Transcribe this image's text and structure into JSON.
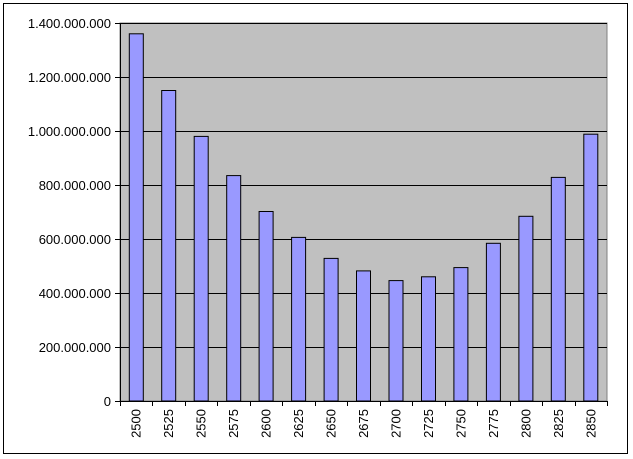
{
  "chart_data": {
    "type": "bar",
    "categories": [
      "2500",
      "2525",
      "2550",
      "2575",
      "2600",
      "2625",
      "2650",
      "2675",
      "2700",
      "2725",
      "2750",
      "2775",
      "2800",
      "2825",
      "2850"
    ],
    "values": [
      1360000000,
      1150000000,
      980000000,
      835000000,
      702000000,
      606000000,
      528000000,
      482000000,
      446000000,
      460000000,
      494000000,
      584000000,
      684000000,
      828000000,
      988000000
    ],
    "ylim": [
      0,
      1400000000
    ],
    "yticks": [
      0,
      200000000,
      400000000,
      600000000,
      800000000,
      1000000000,
      1200000000,
      1400000000
    ],
    "ytick_labels": [
      "0",
      "200.000.000",
      "400.000.000",
      "600.000.000",
      "800.000.000",
      "1.000.000.000",
      "1.200.000.000",
      "1.400.000.000"
    ],
    "grid": true,
    "title": "",
    "xlabel": "",
    "ylabel": "",
    "colors": {
      "bar_fill": "#9999ff",
      "bar_stroke": "#000000",
      "plot_background": "#c0c0c0"
    }
  }
}
